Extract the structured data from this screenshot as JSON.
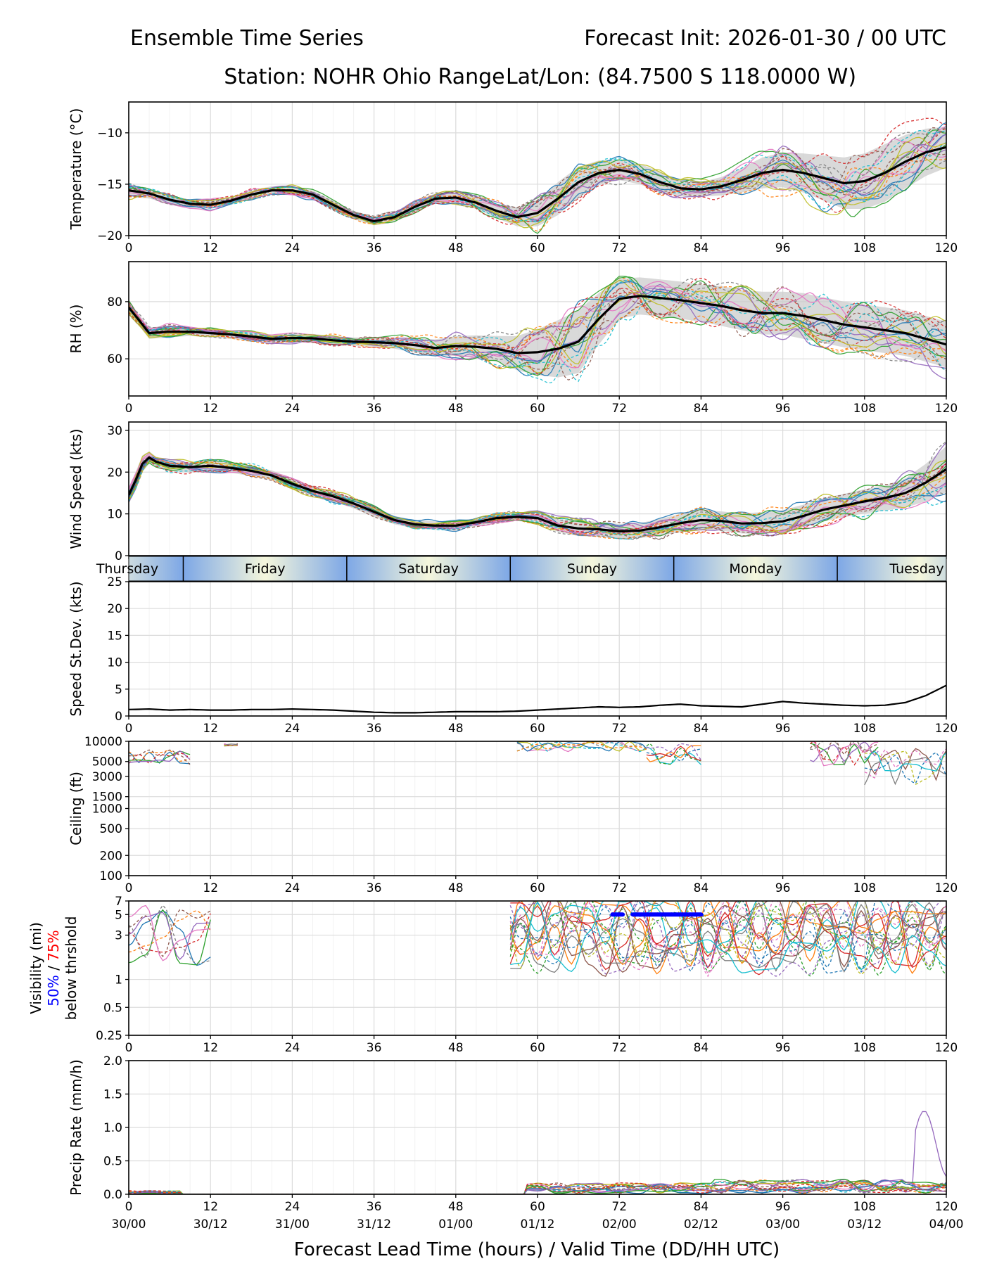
{
  "header": {
    "title_left": "Ensemble Time Series",
    "title_right": "Forecast Init: 2026-01-30 / 00 UTC",
    "station": "Station: NOHR Ohio Range",
    "latlon": "Lat/Lon: (84.7500 S 118.0000 W)"
  },
  "colors": {
    "mean": "#000000",
    "spread": "#cccccc",
    "grid": "#dcdcdc",
    "vis50": "#0000ff",
    "vis75": "#ff0000",
    "members": [
      "#1f77b4",
      "#ff7f0e",
      "#2ca02c",
      "#d62728",
      "#9467bd",
      "#8c564b",
      "#e377c2",
      "#7f7f7f",
      "#bcbd22",
      "#17becf"
    ],
    "day_light": "#f5f7dc",
    "day_dark": "#7da7e6"
  },
  "chart_data": [
    {
      "id": "temperature",
      "type": "line",
      "ylabel": "Temperature (°C)",
      "ylim": [
        -20,
        -7
      ],
      "yticks": [
        -20,
        -15,
        -10
      ],
      "xlim": [
        0,
        120
      ],
      "x": [
        0,
        3,
        6,
        9,
        12,
        15,
        18,
        21,
        24,
        27,
        30,
        33,
        36,
        39,
        42,
        45,
        48,
        51,
        54,
        57,
        60,
        63,
        66,
        69,
        72,
        75,
        78,
        81,
        84,
        87,
        90,
        93,
        96,
        99,
        102,
        105,
        108,
        111,
        114,
        117,
        120
      ],
      "mean": [
        -15.6,
        -15.9,
        -16.5,
        -16.9,
        -17.0,
        -16.6,
        -16.0,
        -15.6,
        -15.6,
        -16.0,
        -17.0,
        -18.0,
        -18.6,
        -18.2,
        -17.2,
        -16.4,
        -16.3,
        -16.8,
        -17.6,
        -18.2,
        -17.8,
        -16.4,
        -14.8,
        -13.9,
        -13.6,
        -14.0,
        -14.8,
        -15.4,
        -15.5,
        -15.2,
        -14.6,
        -13.9,
        -13.6,
        -13.9,
        -14.4,
        -14.9,
        -14.7,
        -13.9,
        -12.8,
        -11.9,
        -11.4
      ],
      "spread_width": [
        0.6,
        0.5,
        0.4,
        0.4,
        0.4,
        0.4,
        0.4,
        0.4,
        0.4,
        0.4,
        0.4,
        0.4,
        0.4,
        0.5,
        0.5,
        0.5,
        0.6,
        0.6,
        0.7,
        0.9,
        1.3,
        1.6,
        1.5,
        1.2,
        1.0,
        1.0,
        1.0,
        0.8,
        0.7,
        0.9,
        1.2,
        1.5,
        1.7,
        1.9,
        2.2,
        2.5,
        2.7,
        2.8,
        2.6,
        2.3,
        2.0
      ],
      "members": 20
    },
    {
      "id": "rh",
      "type": "line",
      "ylabel": "RH (%)",
      "ylim": [
        47,
        94
      ],
      "yticks": [
        60,
        80
      ],
      "xlim": [
        0,
        120
      ],
      "x": [
        0,
        3,
        6,
        9,
        12,
        15,
        18,
        21,
        24,
        27,
        30,
        33,
        36,
        39,
        42,
        45,
        48,
        51,
        54,
        57,
        60,
        63,
        66,
        69,
        72,
        75,
        78,
        81,
        84,
        87,
        90,
        93,
        96,
        99,
        102,
        105,
        108,
        111,
        114,
        117,
        120
      ],
      "mean": [
        78,
        69,
        69.5,
        69.5,
        69,
        68.5,
        67.8,
        67,
        67.3,
        67.2,
        66.5,
        66,
        65.8,
        65.5,
        64.8,
        63.8,
        64.5,
        64.2,
        63.5,
        62,
        62.3,
        63.5,
        66,
        74,
        81,
        82,
        81.3,
        80.5,
        79.5,
        78.5,
        77,
        76,
        76,
        75,
        73.5,
        72,
        71,
        70,
        69,
        67,
        65
      ],
      "spread_width": [
        2,
        2,
        2,
        1.5,
        1.5,
        1.5,
        1.5,
        1.5,
        1.5,
        1.5,
        1.5,
        1.5,
        1.5,
        2,
        2.5,
        3,
        3.5,
        4,
        4.5,
        6,
        8,
        10,
        11,
        9,
        7,
        6.5,
        6.5,
        6.5,
        6.5,
        7,
        7,
        7.5,
        7.5,
        8,
        8,
        8,
        8,
        8,
        8,
        8,
        8
      ],
      "members": 20
    },
    {
      "id": "wind",
      "type": "line",
      "ylabel": "Wind Speed (kts)",
      "ylim": [
        0,
        32
      ],
      "yticks": [
        0,
        10,
        20,
        30
      ],
      "xlim": [
        0,
        120
      ],
      "x": [
        0,
        1,
        2,
        3,
        4,
        6,
        9,
        12,
        15,
        18,
        21,
        24,
        27,
        30,
        33,
        36,
        39,
        42,
        45,
        48,
        51,
        54,
        57,
        60,
        63,
        66,
        69,
        72,
        75,
        78,
        81,
        84,
        87,
        90,
        93,
        96,
        99,
        102,
        105,
        108,
        111,
        114,
        117,
        120
      ],
      "mean": [
        14.5,
        18,
        22,
        23.5,
        22.5,
        21.5,
        21.2,
        21.5,
        21,
        20.3,
        19.2,
        17.2,
        15.5,
        14.2,
        12.5,
        10.5,
        8.5,
        7.5,
        7.2,
        7.2,
        8,
        9,
        9.3,
        9,
        7.2,
        6.5,
        6.3,
        5.8,
        6,
        6.8,
        7.8,
        8.5,
        8.3,
        7.7,
        7.8,
        8.2,
        9.5,
        11,
        12,
        13,
        13.8,
        15,
        17.5,
        20.7
      ],
      "spread_width": [
        1.5,
        2,
        2,
        1.5,
        1.2,
        1.2,
        1.2,
        1.2,
        1.2,
        1.2,
        1.2,
        1.2,
        1.2,
        1.2,
        1.2,
        1.2,
        1.0,
        1.0,
        1.0,
        1.0,
        1.0,
        1.0,
        1.0,
        1.2,
        1.5,
        1.8,
        1.8,
        1.8,
        1.8,
        2,
        2.2,
        2.3,
        2.3,
        2.4,
        2.6,
        2.7,
        2.7,
        2.8,
        2.8,
        2.9,
        3,
        3.5,
        4.5,
        5.5
      ],
      "members": 20
    },
    {
      "id": "wind_sd",
      "type": "line",
      "ylabel": "Speed St.Dev. (kts)",
      "ylim": [
        0,
        25
      ],
      "yticks": [
        0,
        5,
        10,
        15,
        20,
        25
      ],
      "xlim": [
        0,
        120
      ],
      "x": [
        0,
        3,
        6,
        9,
        12,
        15,
        18,
        21,
        24,
        27,
        30,
        33,
        36,
        39,
        42,
        45,
        48,
        51,
        54,
        57,
        60,
        63,
        66,
        69,
        72,
        75,
        78,
        81,
        84,
        87,
        90,
        93,
        96,
        99,
        102,
        105,
        108,
        111,
        114,
        117,
        120
      ],
      "values": [
        1.2,
        1.3,
        1.1,
        1.2,
        1.1,
        1.1,
        1.2,
        1.2,
        1.3,
        1.2,
        1.1,
        0.9,
        0.7,
        0.6,
        0.6,
        0.7,
        0.8,
        0.8,
        0.8,
        0.9,
        1.1,
        1.3,
        1.5,
        1.7,
        1.6,
        1.7,
        2.0,
        2.2,
        1.9,
        1.8,
        1.7,
        2.2,
        2.7,
        2.4,
        2.2,
        2.0,
        1.9,
        2.0,
        2.5,
        3.8,
        5.7
      ]
    },
    {
      "id": "ceiling",
      "type": "line",
      "ylabel": "Ceiling (ft)",
      "scale": "log",
      "ylim": [
        100,
        10000
      ],
      "yticks": [
        100,
        200,
        500,
        1000,
        1500,
        3000,
        5000,
        10000
      ],
      "xlim": [
        0,
        120
      ]
    },
    {
      "id": "visibility",
      "type": "line",
      "ylabel_lines": [
        "Visibility (mi)",
        "50%",
        " / ",
        "75%",
        "below thrshold"
      ],
      "scale": "log",
      "ylim": [
        0.25,
        7
      ],
      "yticks": [
        0.25,
        0.5,
        1,
        3,
        5,
        7
      ],
      "xlim": [
        0,
        120
      ],
      "threshold_value": 5,
      "below50_segments": [
        [
          71,
          72.5
        ],
        [
          74,
          84
        ]
      ]
    },
    {
      "id": "precip",
      "type": "line",
      "ylabel": "Precip Rate (mm/h)",
      "ylim": [
        0,
        2
      ],
      "yticks": [
        0.0,
        0.5,
        1.0,
        1.5,
        2.0
      ],
      "xlim": [
        0,
        120
      ]
    }
  ],
  "xaxis": {
    "ticks": [
      0,
      12,
      24,
      36,
      48,
      60,
      72,
      84,
      96,
      108,
      120
    ],
    "tick_labels": [
      "0",
      "12",
      "24",
      "36",
      "48",
      "60",
      "72",
      "84",
      "96",
      "108",
      "120"
    ],
    "valid_labels": [
      "30/00",
      "30/12",
      "31/00",
      "31/12",
      "01/00",
      "01/12",
      "02/00",
      "02/12",
      "03/00",
      "03/12",
      "04/00"
    ],
    "xlabel": "Forecast Lead Time (hours) / Valid Time (DD/HH UTC)"
  },
  "day_band": {
    "days": [
      "Thursday",
      "Friday",
      "Saturday",
      "Sunday",
      "Monday",
      "Tuesday"
    ],
    "boundaries_hours": [
      8,
      32,
      56,
      80,
      104
    ]
  }
}
